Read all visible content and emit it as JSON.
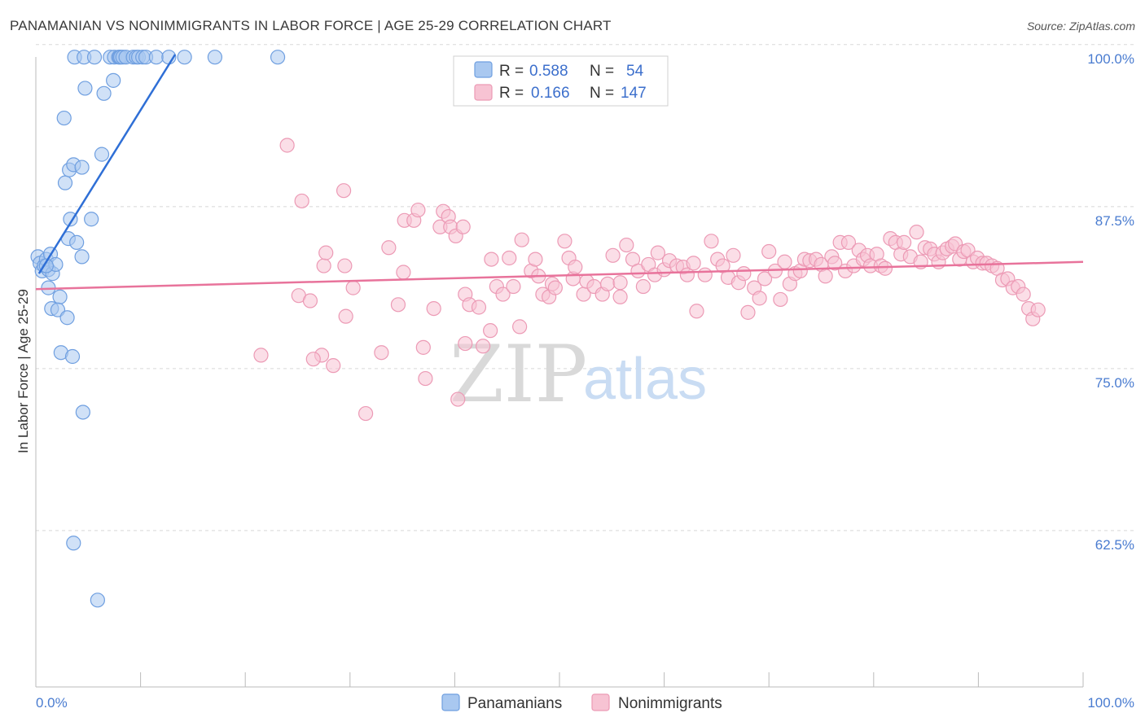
{
  "header": {
    "title": "PANAMANIAN VS NONIMMIGRANTS IN LABOR FORCE | AGE 25-29 CORRELATION CHART",
    "source": "Source: ZipAtlas.com"
  },
  "watermark": {
    "zip": "ZIP",
    "atlas": "atlas"
  },
  "colors": {
    "blue_fill": "#a9c8f0",
    "blue_stroke": "#6f9fe0",
    "blue_line": "#2f6fd6",
    "pink_fill": "#f7c3d3",
    "pink_stroke": "#ec9ab5",
    "pink_line": "#e8739b",
    "grid": "#d8d8d8",
    "tick_text": "#4a7cd0"
  },
  "legend": {
    "rows": [
      {
        "r_label": "R =",
        "r_value": "0.588",
        "n_label": "N =",
        "n_value": "54"
      },
      {
        "r_label": "R =",
        "r_value": "0.166",
        "n_label": "N =",
        "n_value": "147"
      }
    ]
  },
  "bottom_legend": {
    "series1": "Panamanians",
    "series2": "Nonimmigrants"
  },
  "chart_data": {
    "type": "scatter",
    "title": "PANAMANIAN VS NONIMMIGRANTS IN LABOR FORCE | AGE 25-29 CORRELATION CHART",
    "xlabel": "",
    "ylabel": "In Labor Force | Age 25-29",
    "xlim": [
      0,
      100
    ],
    "ylim": [
      51.5,
      102.5
    ],
    "x_tick_labels": [
      "0.0%",
      "100.0%"
    ],
    "y_ticks": [
      62.5,
      75.0,
      87.5,
      100.0
    ],
    "y_tick_labels": [
      "62.5%",
      "75.0%",
      "87.5%",
      "100.0%"
    ],
    "series": [
      {
        "name": "Panamanians",
        "r": 0.588,
        "n": 54,
        "trend": {
          "x": [
            0.3,
            13.3
          ],
          "y": [
            83.4,
            100.3
          ]
        },
        "points": [
          [
            0.2,
            84.7
          ],
          [
            0.4,
            84.2
          ],
          [
            0.6,
            83.6
          ],
          [
            0.8,
            84.0
          ],
          [
            1.0,
            84.5
          ],
          [
            1.2,
            83.7
          ],
          [
            1.4,
            84.9
          ],
          [
            1.6,
            83.4
          ],
          [
            1.9,
            84.1
          ],
          [
            1.2,
            82.3
          ],
          [
            2.3,
            81.6
          ],
          [
            1.5,
            80.7
          ],
          [
            2.1,
            80.6
          ],
          [
            3.0,
            80.0
          ],
          [
            2.4,
            77.3
          ],
          [
            3.5,
            77.0
          ],
          [
            3.1,
            86.1
          ],
          [
            3.3,
            87.6
          ],
          [
            3.9,
            85.8
          ],
          [
            4.4,
            84.7
          ],
          [
            5.3,
            87.6
          ],
          [
            2.8,
            90.4
          ],
          [
            3.2,
            91.4
          ],
          [
            3.6,
            91.8
          ],
          [
            4.4,
            91.6
          ],
          [
            2.7,
            95.4
          ],
          [
            4.7,
            97.7
          ],
          [
            6.3,
            92.6
          ],
          [
            6.5,
            97.3
          ],
          [
            7.4,
            98.3
          ],
          [
            3.7,
            100.1
          ],
          [
            4.6,
            100.1
          ],
          [
            5.6,
            100.1
          ],
          [
            7.1,
            100.1
          ],
          [
            7.5,
            100.1
          ],
          [
            7.9,
            100.1
          ],
          [
            8.0,
            100.1
          ],
          [
            8.1,
            100.1
          ],
          [
            8.3,
            100.1
          ],
          [
            8.6,
            100.1
          ],
          [
            9.3,
            100.1
          ],
          [
            9.6,
            100.1
          ],
          [
            9.8,
            100.1
          ],
          [
            10.2,
            100.1
          ],
          [
            10.5,
            100.1
          ],
          [
            11.5,
            100.1
          ],
          [
            12.7,
            100.1
          ],
          [
            14.2,
            100.1
          ],
          [
            17.1,
            100.1
          ],
          [
            23.1,
            100.1
          ],
          [
            4.5,
            72.7
          ],
          [
            3.6,
            62.6
          ],
          [
            5.9,
            58.2
          ],
          [
            1.0,
            84.0
          ]
        ]
      },
      {
        "name": "Nonimmigrants",
        "r": 0.166,
        "n": 147,
        "trend": {
          "x": [
            0,
            100
          ],
          "y": [
            82.2,
            84.3
          ]
        },
        "points": [
          [
            24.0,
            93.3
          ],
          [
            25.4,
            89.0
          ],
          [
            29.4,
            89.8
          ],
          [
            27.3,
            77.1
          ],
          [
            31.5,
            72.6
          ],
          [
            21.5,
            77.1
          ],
          [
            26.5,
            76.8
          ],
          [
            28.4,
            76.3
          ],
          [
            33.0,
            77.3
          ],
          [
            37.0,
            77.7
          ],
          [
            38.0,
            80.7
          ],
          [
            41.0,
            78.0
          ],
          [
            42.7,
            77.8
          ],
          [
            37.2,
            75.3
          ],
          [
            43.4,
            79.0
          ],
          [
            40.3,
            73.7
          ],
          [
            25.1,
            81.7
          ],
          [
            26.2,
            81.3
          ],
          [
            27.5,
            84.0
          ],
          [
            27.7,
            85.0
          ],
          [
            29.5,
            84.0
          ],
          [
            30.3,
            82.3
          ],
          [
            29.6,
            80.1
          ],
          [
            33.7,
            85.4
          ],
          [
            34.6,
            81.0
          ],
          [
            35.1,
            83.5
          ],
          [
            35.2,
            87.5
          ],
          [
            36.1,
            87.5
          ],
          [
            36.5,
            88.3
          ],
          [
            38.6,
            87.0
          ],
          [
            38.9,
            88.2
          ],
          [
            39.4,
            87.8
          ],
          [
            39.6,
            87.0
          ],
          [
            40.1,
            86.3
          ],
          [
            40.8,
            87.0
          ],
          [
            41.0,
            81.8
          ],
          [
            41.4,
            81.0
          ],
          [
            42.3,
            80.8
          ],
          [
            43.5,
            84.5
          ],
          [
            44.0,
            82.4
          ],
          [
            44.6,
            81.8
          ],
          [
            45.2,
            84.6
          ],
          [
            45.6,
            82.4
          ],
          [
            46.2,
            79.3
          ],
          [
            46.4,
            86.0
          ],
          [
            47.3,
            83.6
          ],
          [
            47.7,
            84.5
          ],
          [
            48.0,
            83.2
          ],
          [
            48.4,
            81.8
          ],
          [
            49.0,
            81.6
          ],
          [
            49.3,
            82.6
          ],
          [
            49.6,
            82.3
          ],
          [
            50.5,
            85.9
          ],
          [
            50.9,
            84.6
          ],
          [
            51.3,
            83.0
          ],
          [
            51.5,
            83.9
          ],
          [
            52.3,
            81.8
          ],
          [
            52.6,
            82.8
          ],
          [
            53.3,
            82.4
          ],
          [
            54.1,
            81.8
          ],
          [
            54.6,
            82.6
          ],
          [
            55.1,
            84.8
          ],
          [
            55.8,
            82.7
          ],
          [
            56.4,
            85.6
          ],
          [
            57.0,
            84.5
          ],
          [
            57.5,
            83.6
          ],
          [
            58.0,
            82.4
          ],
          [
            58.5,
            84.1
          ],
          [
            59.1,
            83.3
          ],
          [
            59.4,
            85.0
          ],
          [
            60.0,
            83.7
          ],
          [
            60.5,
            84.4
          ],
          [
            61.2,
            84.0
          ],
          [
            61.8,
            83.9
          ],
          [
            62.2,
            83.3
          ],
          [
            62.8,
            84.2
          ],
          [
            63.1,
            80.5
          ],
          [
            63.9,
            83.3
          ],
          [
            64.5,
            85.9
          ],
          [
            65.1,
            84.5
          ],
          [
            65.6,
            84.0
          ],
          [
            66.1,
            83.1
          ],
          [
            66.6,
            84.8
          ],
          [
            67.1,
            82.7
          ],
          [
            67.6,
            83.4
          ],
          [
            68.0,
            80.4
          ],
          [
            68.6,
            82.3
          ],
          [
            69.1,
            81.5
          ],
          [
            69.6,
            83.0
          ],
          [
            70.0,
            85.1
          ],
          [
            70.6,
            83.6
          ],
          [
            71.1,
            81.4
          ],
          [
            71.5,
            84.3
          ],
          [
            72.0,
            82.6
          ],
          [
            72.5,
            83.4
          ],
          [
            73.0,
            83.6
          ],
          [
            73.4,
            84.5
          ],
          [
            73.9,
            84.4
          ],
          [
            74.5,
            84.5
          ],
          [
            75.0,
            84.1
          ],
          [
            75.4,
            83.2
          ],
          [
            76.0,
            84.7
          ],
          [
            76.3,
            84.2
          ],
          [
            76.8,
            85.8
          ],
          [
            77.3,
            83.6
          ],
          [
            77.6,
            85.8
          ],
          [
            78.1,
            84.0
          ],
          [
            78.6,
            85.2
          ],
          [
            79.0,
            84.5
          ],
          [
            79.4,
            84.8
          ],
          [
            79.7,
            84.0
          ],
          [
            80.3,
            84.9
          ],
          [
            80.7,
            84.0
          ],
          [
            81.1,
            83.8
          ],
          [
            81.6,
            86.1
          ],
          [
            82.1,
            85.8
          ],
          [
            82.6,
            84.9
          ],
          [
            82.9,
            85.8
          ],
          [
            83.5,
            84.7
          ],
          [
            84.1,
            86.6
          ],
          [
            84.5,
            84.3
          ],
          [
            84.9,
            85.4
          ],
          [
            85.4,
            85.3
          ],
          [
            85.8,
            84.9
          ],
          [
            86.2,
            84.3
          ],
          [
            86.6,
            85.0
          ],
          [
            87.0,
            85.3
          ],
          [
            87.5,
            85.5
          ],
          [
            87.8,
            85.7
          ],
          [
            88.2,
            84.5
          ],
          [
            88.6,
            85.1
          ],
          [
            89.0,
            85.2
          ],
          [
            89.5,
            84.3
          ],
          [
            89.9,
            84.6
          ],
          [
            90.4,
            84.2
          ],
          [
            90.8,
            84.2
          ],
          [
            91.3,
            84.0
          ],
          [
            91.8,
            83.8
          ],
          [
            92.3,
            82.9
          ],
          [
            92.8,
            83.0
          ],
          [
            93.3,
            82.3
          ],
          [
            93.8,
            82.4
          ],
          [
            94.3,
            81.8
          ],
          [
            94.8,
            80.7
          ],
          [
            95.2,
            79.9
          ],
          [
            95.7,
            80.6
          ],
          [
            55.8,
            81.6
          ]
        ]
      }
    ]
  }
}
